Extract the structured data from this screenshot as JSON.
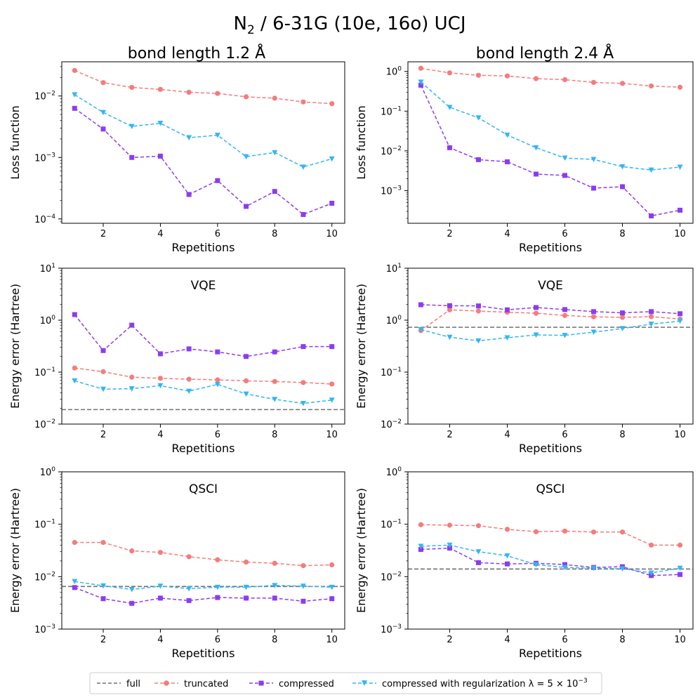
{
  "figure": {
    "title_main": "N",
    "title_sub": "2",
    "title_rest": " / 6-31G (10e, 16o) UCJ"
  },
  "columns": {
    "left": {
      "title": "bond length 1.2 Å"
    },
    "right": {
      "title": "bond length 2.4 Å"
    }
  },
  "legend": {
    "items": [
      {
        "key": "full",
        "label": "full"
      },
      {
        "key": "truncated",
        "label": "truncated"
      },
      {
        "key": "compressed",
        "label": "compressed"
      },
      {
        "key": "regularized",
        "label": "compressed with regularization λ = 5 × 10"
      },
      {
        "key": "regularized_exp",
        "label": "−3"
      }
    ]
  },
  "colors": {
    "full": "#707070",
    "truncated": "#f47c7c",
    "compressed": "#8c3cf0",
    "regularized": "#33b5f5"
  },
  "chart_data": [
    {
      "id": "loss-1.2",
      "type": "line",
      "yscale": "log",
      "title": "",
      "xlabel": "Repetitions",
      "ylabel": "Loss function",
      "xlim": [
        0.55,
        10.45
      ],
      "ylim": [
        8.5e-05,
        0.036
      ],
      "xticks": [
        2,
        4,
        6,
        8,
        10
      ],
      "yticks": [
        {
          "v": 0.0001,
          "m": "10",
          "e": "−4"
        },
        {
          "v": 0.001,
          "m": "10",
          "e": "−3"
        },
        {
          "v": 0.01,
          "m": "10",
          "e": "−2"
        }
      ],
      "x": [
        1,
        2,
        3,
        4,
        5,
        6,
        7,
        8,
        9,
        10
      ],
      "full": null,
      "series": [
        {
          "name": "truncated",
          "values": [
            0.026,
            0.0165,
            0.0138,
            0.0128,
            0.0115,
            0.011,
            0.0097,
            0.0092,
            0.008,
            0.0075
          ]
        },
        {
          "name": "compressed",
          "values": [
            0.0063,
            0.0029,
            0.001,
            0.00105,
            0.00025,
            0.00042,
            0.00016,
            0.00028,
            0.000118,
            0.00018
          ]
        },
        {
          "name": "compressed with regularization",
          "values": [
            0.0105,
            0.0054,
            0.0032,
            0.0036,
            0.0021,
            0.0023,
            0.00103,
            0.0012,
            0.0007,
            0.00095
          ]
        }
      ]
    },
    {
      "id": "loss-2.4",
      "type": "line",
      "yscale": "log",
      "title": "",
      "xlabel": "Repetitions",
      "ylabel": "Loss function",
      "xlim": [
        0.55,
        10.45
      ],
      "ylim": [
        0.00015,
        1.75
      ],
      "xticks": [
        2,
        4,
        6,
        8,
        10
      ],
      "yticks": [
        {
          "v": 0.001,
          "m": "10",
          "e": "−3"
        },
        {
          "v": 0.01,
          "m": "10",
          "e": "−2"
        },
        {
          "v": 0.1,
          "m": "10",
          "e": "−1"
        },
        {
          "v": 1,
          "m": "10",
          "e": "0"
        }
      ],
      "x": [
        1,
        2,
        3,
        4,
        5,
        6,
        7,
        8,
        9,
        10
      ],
      "full": null,
      "series": [
        {
          "name": "truncated",
          "values": [
            1.2,
            0.92,
            0.8,
            0.77,
            0.66,
            0.62,
            0.53,
            0.5,
            0.43,
            0.4
          ]
        },
        {
          "name": "compressed",
          "values": [
            0.45,
            0.012,
            0.006,
            0.0053,
            0.0026,
            0.0024,
            0.00115,
            0.00125,
            0.00023,
            0.00032
          ]
        },
        {
          "name": "compressed with regularization",
          "values": [
            0.54,
            0.125,
            0.068,
            0.025,
            0.012,
            0.0066,
            0.0061,
            0.004,
            0.0033,
            0.0039
          ]
        }
      ]
    },
    {
      "id": "vqe-1.2",
      "type": "line",
      "yscale": "log",
      "title": "VQE",
      "xlabel": "Repetitions",
      "ylabel": "Energy error (Hartree)",
      "xlim": [
        0.55,
        10.45
      ],
      "ylim": [
        0.01,
        10
      ],
      "xticks": [
        2,
        4,
        6,
        8,
        10
      ],
      "yticks": [
        {
          "v": 0.01,
          "m": "10",
          "e": "−2"
        },
        {
          "v": 0.1,
          "m": "10",
          "e": "−1"
        },
        {
          "v": 1,
          "m": "10",
          "e": "0"
        },
        {
          "v": 10,
          "m": "10",
          "e": "1"
        }
      ],
      "x": [
        1,
        2,
        3,
        4,
        5,
        6,
        7,
        8,
        9,
        10
      ],
      "full": 0.019,
      "series": [
        {
          "name": "truncated",
          "values": [
            0.12,
            0.102,
            0.08,
            0.076,
            0.073,
            0.071,
            0.068,
            0.066,
            0.063,
            0.059
          ]
        },
        {
          "name": "compressed",
          "values": [
            1.28,
            0.26,
            0.8,
            0.225,
            0.28,
            0.245,
            0.2,
            0.245,
            0.31,
            0.31
          ]
        },
        {
          "name": "compressed with regularization",
          "values": [
            0.068,
            0.047,
            0.048,
            0.055,
            0.043,
            0.058,
            0.038,
            0.03,
            0.025,
            0.029
          ]
        }
      ]
    },
    {
      "id": "vqe-2.4",
      "type": "line",
      "yscale": "log",
      "title": "VQE",
      "xlabel": "Repetitions",
      "ylabel": "Energy error (Hartree)",
      "xlim": [
        0.55,
        10.45
      ],
      "ylim": [
        0.01,
        10
      ],
      "xticks": [
        2,
        4,
        6,
        8,
        10
      ],
      "yticks": [
        {
          "v": 0.01,
          "m": "10",
          "e": "−2"
        },
        {
          "v": 0.1,
          "m": "10",
          "e": "−1"
        },
        {
          "v": 1,
          "m": "10",
          "e": "0"
        },
        {
          "v": 10,
          "m": "10",
          "e": "1"
        }
      ],
      "x": [
        1,
        2,
        3,
        4,
        5,
        6,
        7,
        8,
        9,
        10
      ],
      "full": 0.73,
      "series": [
        {
          "name": "truncated",
          "values": [
            0.63,
            1.58,
            1.5,
            1.42,
            1.36,
            1.23,
            1.16,
            1.13,
            1.17,
            1.05
          ]
        },
        {
          "name": "compressed",
          "values": [
            1.98,
            1.9,
            1.88,
            1.58,
            1.75,
            1.6,
            1.46,
            1.38,
            1.46,
            1.33
          ]
        },
        {
          "name": "compressed with regularization",
          "values": [
            0.66,
            0.47,
            0.4,
            0.46,
            0.52,
            0.51,
            0.59,
            0.69,
            0.84,
            0.96
          ]
        }
      ]
    },
    {
      "id": "qsci-1.2",
      "type": "line",
      "yscale": "log",
      "title": "QSCI",
      "xlabel": "Repetitions",
      "ylabel": "Energy error (Hartree)",
      "xlim": [
        0.55,
        10.45
      ],
      "ylim": [
        0.001,
        1
      ],
      "xticks": [
        2,
        4,
        6,
        8,
        10
      ],
      "yticks": [
        {
          "v": 0.001,
          "m": "10",
          "e": "−3"
        },
        {
          "v": 0.01,
          "m": "10",
          "e": "−2"
        },
        {
          "v": 0.1,
          "m": "10",
          "e": "−1"
        },
        {
          "v": 1,
          "m": "10",
          "e": "0"
        }
      ],
      "x": [
        1,
        2,
        3,
        4,
        5,
        6,
        7,
        8,
        9,
        10
      ],
      "full": 0.0065,
      "series": [
        {
          "name": "truncated",
          "values": [
            0.045,
            0.045,
            0.031,
            0.029,
            0.024,
            0.021,
            0.019,
            0.018,
            0.0162,
            0.0168
          ]
        },
        {
          "name": "compressed",
          "values": [
            0.0062,
            0.0038,
            0.0031,
            0.0039,
            0.0035,
            0.004,
            0.0039,
            0.0039,
            0.0034,
            0.0038
          ]
        },
        {
          "name": "compressed with regularization",
          "values": [
            0.0081,
            0.0067,
            0.0057,
            0.0066,
            0.0059,
            0.0063,
            0.0063,
            0.0068,
            0.0066,
            0.0063
          ]
        }
      ]
    },
    {
      "id": "qsci-2.4",
      "type": "line",
      "yscale": "log",
      "title": "QSCI",
      "xlabel": "Repetitions",
      "ylabel": "Energy error (Hartree)",
      "xlim": [
        0.55,
        10.45
      ],
      "ylim": [
        0.001,
        1
      ],
      "xticks": [
        2,
        4,
        6,
        8,
        10
      ],
      "yticks": [
        {
          "v": 0.001,
          "m": "10",
          "e": "−3"
        },
        {
          "v": 0.01,
          "m": "10",
          "e": "−2"
        },
        {
          "v": 0.1,
          "m": "10",
          "e": "−1"
        },
        {
          "v": 1,
          "m": "10",
          "e": "0"
        }
      ],
      "x": [
        1,
        2,
        3,
        4,
        5,
        6,
        7,
        8,
        9,
        10
      ],
      "full": 0.014,
      "series": [
        {
          "name": "truncated",
          "values": [
            0.098,
            0.096,
            0.094,
            0.08,
            0.072,
            0.074,
            0.071,
            0.071,
            0.04,
            0.04
          ]
        },
        {
          "name": "compressed",
          "values": [
            0.033,
            0.035,
            0.0185,
            0.0175,
            0.018,
            0.017,
            0.015,
            0.0155,
            0.0105,
            0.011
          ]
        },
        {
          "name": "compressed with regularization",
          "values": [
            0.038,
            0.04,
            0.03,
            0.025,
            0.017,
            0.015,
            0.0145,
            0.0142,
            0.0118,
            0.0145
          ]
        }
      ]
    }
  ]
}
